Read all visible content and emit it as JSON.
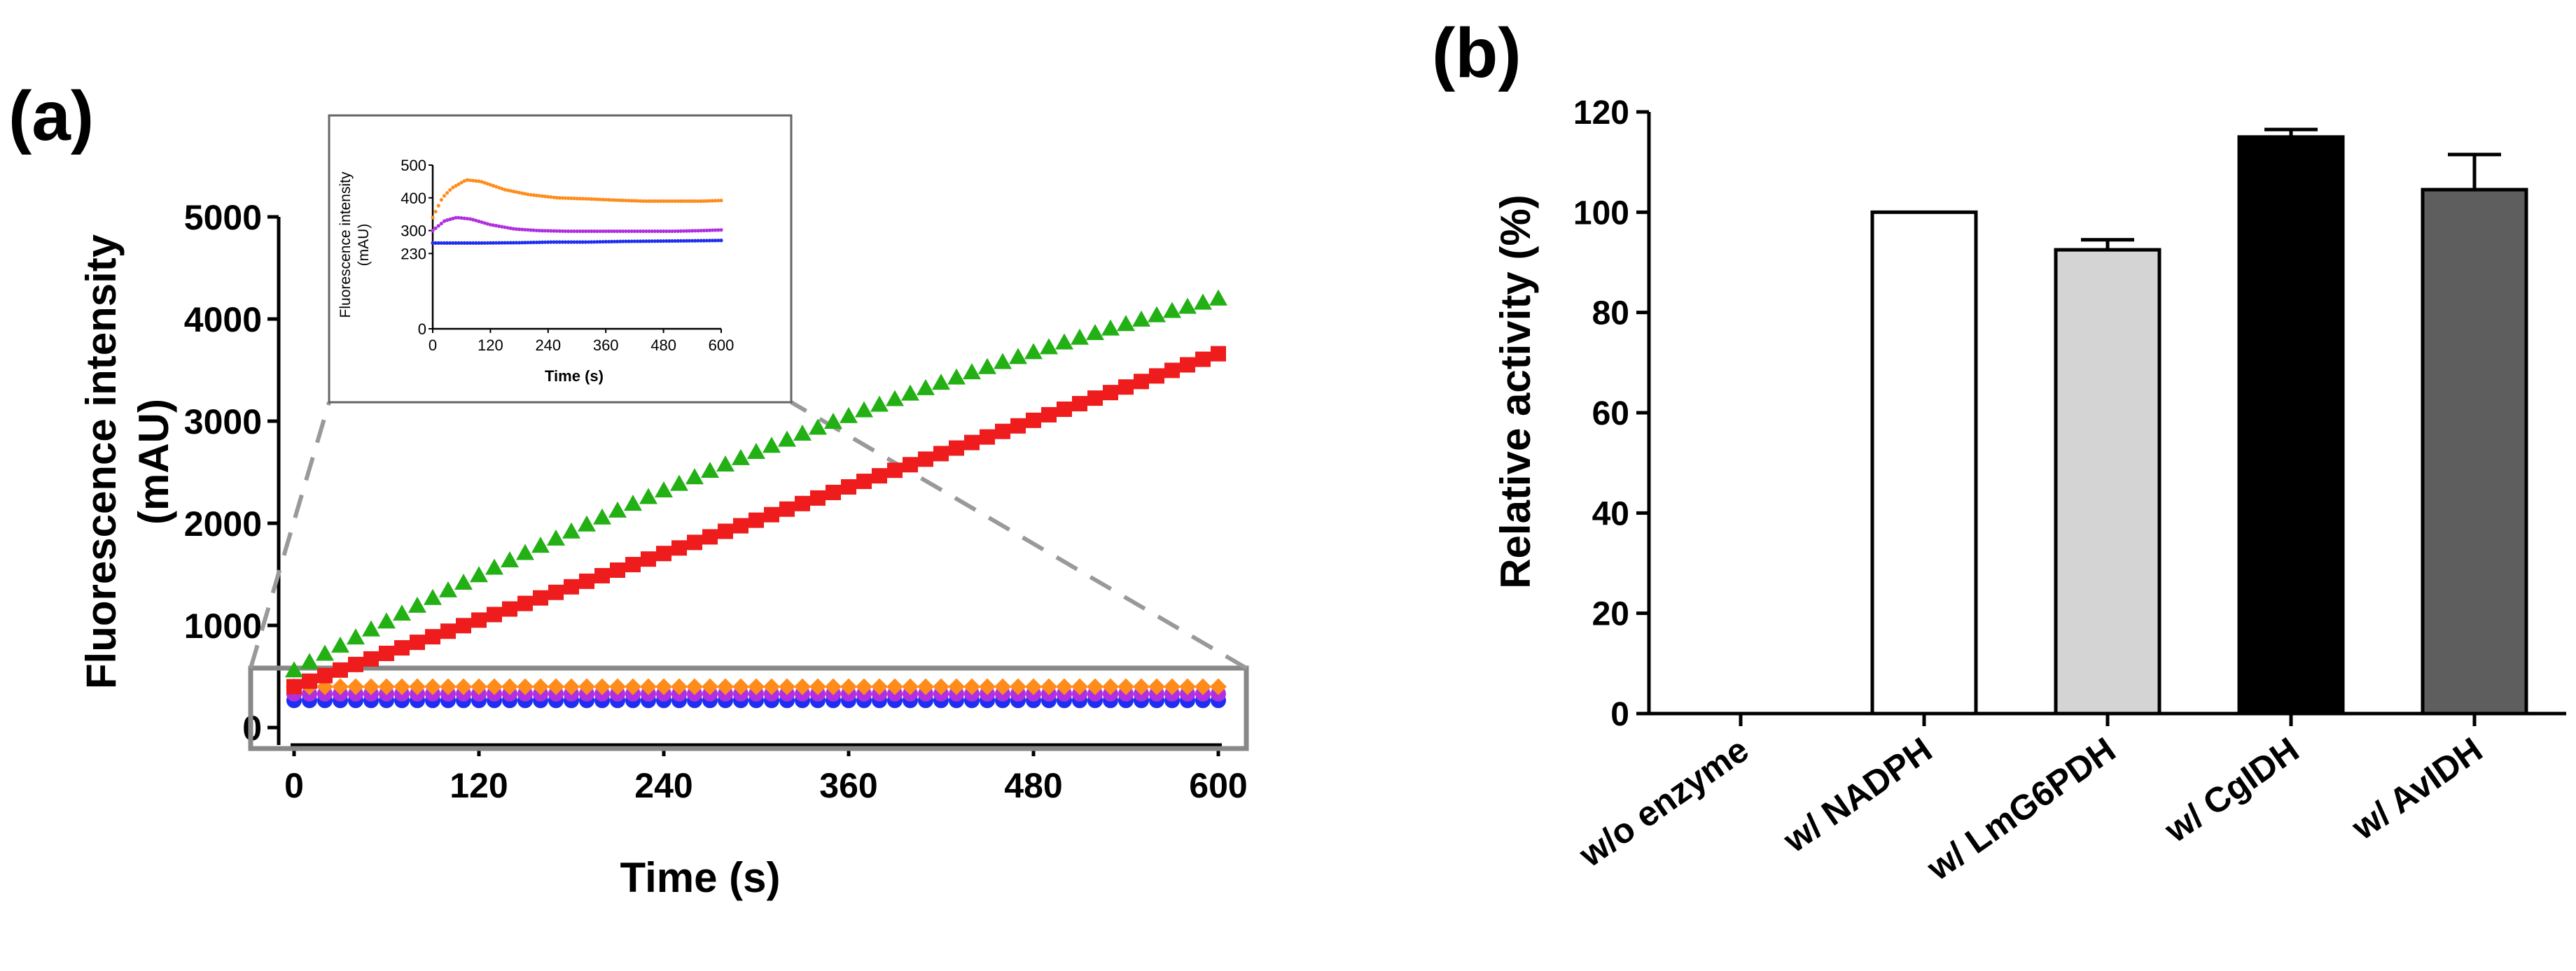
{
  "panel_a_label": "(a)",
  "panel_b_label": "(b)",
  "chart_data": [
    {
      "panel": "(a)",
      "type": "scatter",
      "xlabel": "Time (s)",
      "ylabel": "Fluorescence intensity",
      "ylabel_unit": "(mAU)",
      "xlim": [
        0,
        600
      ],
      "ylim": [
        0,
        5000
      ],
      "xticks": [
        0,
        120,
        240,
        360,
        480,
        600
      ],
      "yticks": [
        0,
        1000,
        2000,
        3000,
        4000,
        5000
      ],
      "series": [
        {
          "name": "green",
          "color": "#22b014",
          "marker": "triangle",
          "y0": 560,
          "y1": 4200,
          "shape": "concave"
        },
        {
          "name": "red",
          "color": "#ee1c1c",
          "marker": "square",
          "y0": 400,
          "y1": 3660,
          "shape": "linear"
        },
        {
          "name": "orange",
          "color": "#ff8c1a",
          "marker": "diamond",
          "y0": 400,
          "y1": 400,
          "shape": "flat"
        },
        {
          "name": "purple",
          "color": "#b030e0",
          "marker": "circle",
          "y0": 330,
          "y1": 330,
          "shape": "flat"
        },
        {
          "name": "blue",
          "color": "#1f2ff0",
          "marker": "circle",
          "y0": 265,
          "y1": 265,
          "shape": "flat"
        }
      ],
      "inset": {
        "xlabel": "Time (s)",
        "ylabel": "Fluorescence intensity",
        "ylabel_unit": "(mAU)",
        "xlim": [
          0,
          600
        ],
        "ylim": [
          0,
          500
        ],
        "xticks": [
          0,
          120,
          240,
          360,
          480,
          600
        ],
        "yticks": [
          0,
          230,
          300,
          400,
          500
        ],
        "series": [
          {
            "name": "orange",
            "color": "#ff8c1a",
            "points": [
              [
                0,
                340
              ],
              [
                20,
                400
              ],
              [
                40,
                430
              ],
              [
                70,
                455
              ],
              [
                100,
                450
              ],
              [
                150,
                425
              ],
              [
                200,
                410
              ],
              [
                260,
                400
              ],
              [
                320,
                397
              ],
              [
                380,
                393
              ],
              [
                440,
                390
              ],
              [
                500,
                390
              ],
              [
                560,
                390
              ],
              [
                600,
                392
              ]
            ]
          },
          {
            "name": "purple",
            "color": "#b030e0",
            "points": [
              [
                0,
                300
              ],
              [
                25,
                330
              ],
              [
                50,
                340
              ],
              [
                80,
                335
              ],
              [
                120,
                318
              ],
              [
                170,
                305
              ],
              [
                220,
                300
              ],
              [
                280,
                298
              ],
              [
                350,
                298
              ],
              [
                420,
                298
              ],
              [
                500,
                298
              ],
              [
                560,
                300
              ],
              [
                600,
                302
              ]
            ]
          },
          {
            "name": "blue",
            "color": "#1f2ff0",
            "points": [
              [
                0,
                262
              ],
              [
                40,
                262
              ],
              [
                100,
                262
              ],
              [
                180,
                263
              ],
              [
                250,
                265
              ],
              [
                320,
                265
              ],
              [
                400,
                267
              ],
              [
                480,
                268
              ],
              [
                550,
                269
              ],
              [
                600,
                270
              ]
            ]
          }
        ]
      }
    },
    {
      "panel": "(b)",
      "type": "bar",
      "ylabel": "Relative activity (%)",
      "ylim": [
        0,
        120
      ],
      "yticks": [
        0,
        20,
        40,
        60,
        80,
        100,
        120
      ],
      "categories": [
        "w/o enzyme",
        "w/ NADPH",
        "w/ LmG6PDH",
        "w/ CgIDH",
        "w/ AvIDH"
      ],
      "values": [
        0,
        100,
        92.5,
        115,
        104.5
      ],
      "errors": [
        0,
        0,
        2,
        1.5,
        7
      ],
      "colors": [
        "#ffffff",
        "#ffffff",
        "#d4d4d4",
        "#000000",
        "#5e5e5e"
      ]
    }
  ]
}
